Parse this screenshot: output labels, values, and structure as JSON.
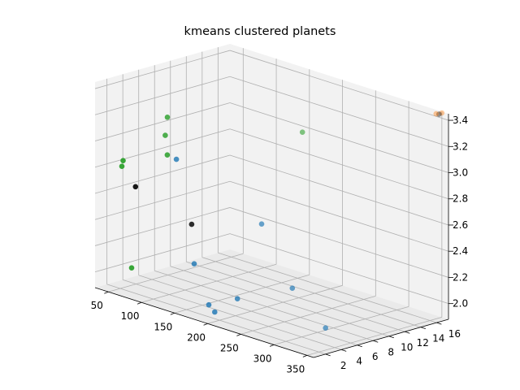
{
  "chart_data": {
    "type": "scatter",
    "projection": "3d",
    "title": "kmeans clustered planets",
    "xlabel": "",
    "ylabel": "",
    "zlabel": "",
    "xlim": [
      30,
      360
    ],
    "ylim": [
      0.5,
      17.5
    ],
    "zlim": [
      1.88,
      3.45
    ],
    "xticks": [
      50,
      100,
      150,
      200,
      250,
      300,
      350
    ],
    "yticks": [
      2,
      4,
      6,
      8,
      10,
      12,
      14,
      16
    ],
    "zticks": [
      2.0,
      2.2,
      2.4,
      2.6,
      2.8,
      3.0,
      3.2,
      3.4
    ],
    "xtick_labels": [
      "50",
      "100",
      "150",
      "200",
      "250",
      "300",
      "350"
    ],
    "ytick_labels": [
      "2",
      "4",
      "6",
      "8",
      "10",
      "12",
      "14",
      "16"
    ],
    "ztick_labels": [
      "2.0",
      "2.2",
      "2.4",
      "2.6",
      "2.8",
      "3.0",
      "3.2",
      "3.4"
    ],
    "grid": true,
    "series": [
      {
        "color": "#1f77b4",
        "points": [
          {
            "x": 45,
            "y": 9.5,
            "z": 2.73
          },
          {
            "x": 133,
            "y": 12.9,
            "z": 2.32
          },
          {
            "x": 103,
            "y": 6.9,
            "z": 2.07
          },
          {
            "x": 185,
            "y": 5.5,
            "z": 1.96
          },
          {
            "x": 214,
            "y": 10.0,
            "z": 2.01
          },
          {
            "x": 167,
            "y": 3.4,
            "z": 1.92
          },
          {
            "x": 176,
            "y": 3.4,
            "z": 1.88
          },
          {
            "x": 311,
            "y": 6.1,
            "z": 1.93
          }
        ]
      },
      {
        "color": "#ff7f0e",
        "points": [
          {
            "x": 345,
            "y": 17.2,
            "z": 3.43
          },
          {
            "x": 350,
            "y": 17.5,
            "z": 3.44
          }
        ]
      },
      {
        "color": "#2ca02c",
        "points": [
          {
            "x": 35,
            "y": 9.2,
            "z": 3.04
          },
          {
            "x": 33,
            "y": 9.1,
            "z": 2.9
          },
          {
            "x": 40,
            "y": 3.2,
            "z": 2.82
          },
          {
            "x": 37,
            "y": 3.3,
            "z": 2.77
          },
          {
            "x": 90,
            "y": 4.6,
            "z": 2.92
          },
          {
            "x": 155,
            "y": 16.2,
            "z": 3.0
          },
          {
            "x": 72,
            "y": 1.6,
            "z": 2.08
          }
        ]
      },
      {
        "color": "#000000",
        "points": [
          {
            "x": 42,
            "y": 4.6,
            "z": 2.6
          },
          {
            "x": 104,
            "y": 6.5,
            "z": 2.38
          },
          {
            "x": 348,
            "y": 17.3,
            "z": 3.43
          }
        ]
      }
    ]
  }
}
